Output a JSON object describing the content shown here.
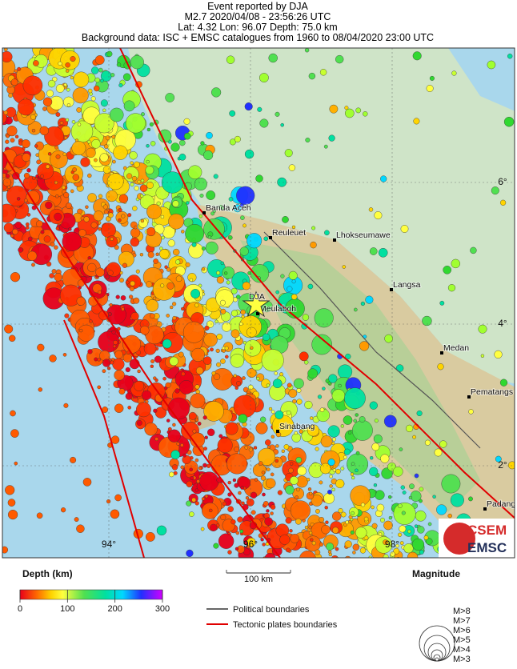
{
  "header": {
    "lines": [
      "Event reported by DJA",
      "M2.7  2020/04/08 - 23:56:26 UTC",
      "Lat:  4.32   Lon:  96.07      Depth:  75.0 km",
      "Background data: ISC + EMSC catalogues from 1960 to 08/04/2020 23:00 UTC"
    ]
  },
  "map": {
    "event_label": "DJA",
    "places": [
      "Banda Aceh",
      "Reuleuet",
      "Lhokseumawe",
      "Langsa",
      "Meulaboh",
      "Medan",
      "Pematangs",
      "Sinabang",
      "Padang"
    ],
    "lat_labels": [
      "6°",
      "4°",
      "2°"
    ],
    "lon_labels": [
      "94°",
      "96°",
      "98°"
    ]
  },
  "legend": {
    "depth_title": "Depth (km)",
    "depth_range": [
      0,
      300
    ],
    "depth_ticks": [
      0,
      100,
      200,
      300
    ],
    "scale": "100 km",
    "political": "Political boundaries",
    "tectonic": "Tectonic plates boundaries",
    "magnitude_title": "Magnitude",
    "magnitudes": [
      "M>8",
      "M>7",
      "M>6",
      "M>5",
      "M>4",
      "M>3"
    ]
  },
  "logo": {
    "top": "CSEM",
    "bottom": "EMSC"
  }
}
